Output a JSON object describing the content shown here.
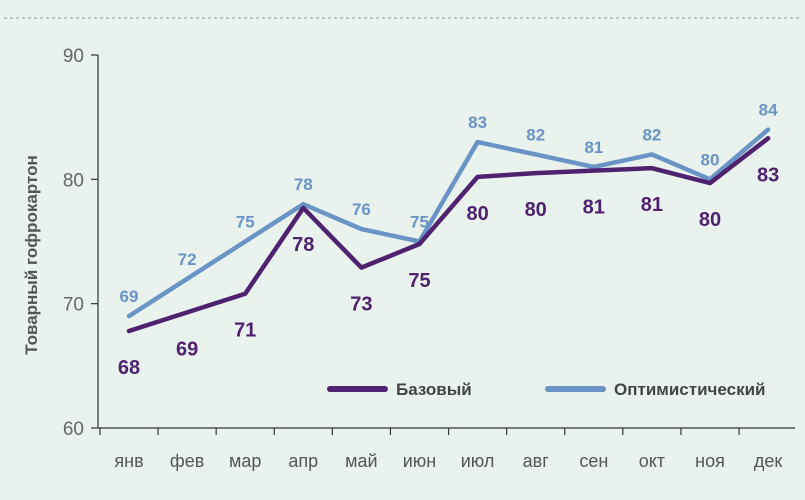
{
  "chart_data": {
    "type": "line",
    "title": "",
    "xlabel": "",
    "ylabel": "Товарный гофрокартон",
    "ylim": [
      60,
      90
    ],
    "yticks": [
      60,
      70,
      80,
      90
    ],
    "grid": false,
    "legend_position": "bottom-right",
    "categories": [
      "янв",
      "фев",
      "мар",
      "апр",
      "май",
      "июн",
      "июл",
      "авг",
      "сен",
      "окт",
      "ноя",
      "дек"
    ],
    "series": [
      {
        "name": "Базовый",
        "color": "#4f2270",
        "values": [
          67.8,
          69.3,
          70.8,
          77.7,
          72.9,
          74.8,
          80.2,
          80.5,
          80.7,
          80.9,
          79.7,
          83.3
        ],
        "labels": [
          "68",
          "69",
          "71",
          "78",
          "73",
          "75",
          "80",
          "80",
          "81",
          "81",
          "80",
          "83"
        ]
      },
      {
        "name": "Оптимистический",
        "color": "#6a93c6",
        "values": [
          69.0,
          72.0,
          75.0,
          78.0,
          76.0,
          75.0,
          83.0,
          82.0,
          81.0,
          82.0,
          80.0,
          84.0
        ],
        "labels": [
          "69",
          "72",
          "75",
          "78",
          "76",
          "75",
          "83",
          "82",
          "81",
          "82",
          "80",
          "84"
        ]
      }
    ]
  }
}
